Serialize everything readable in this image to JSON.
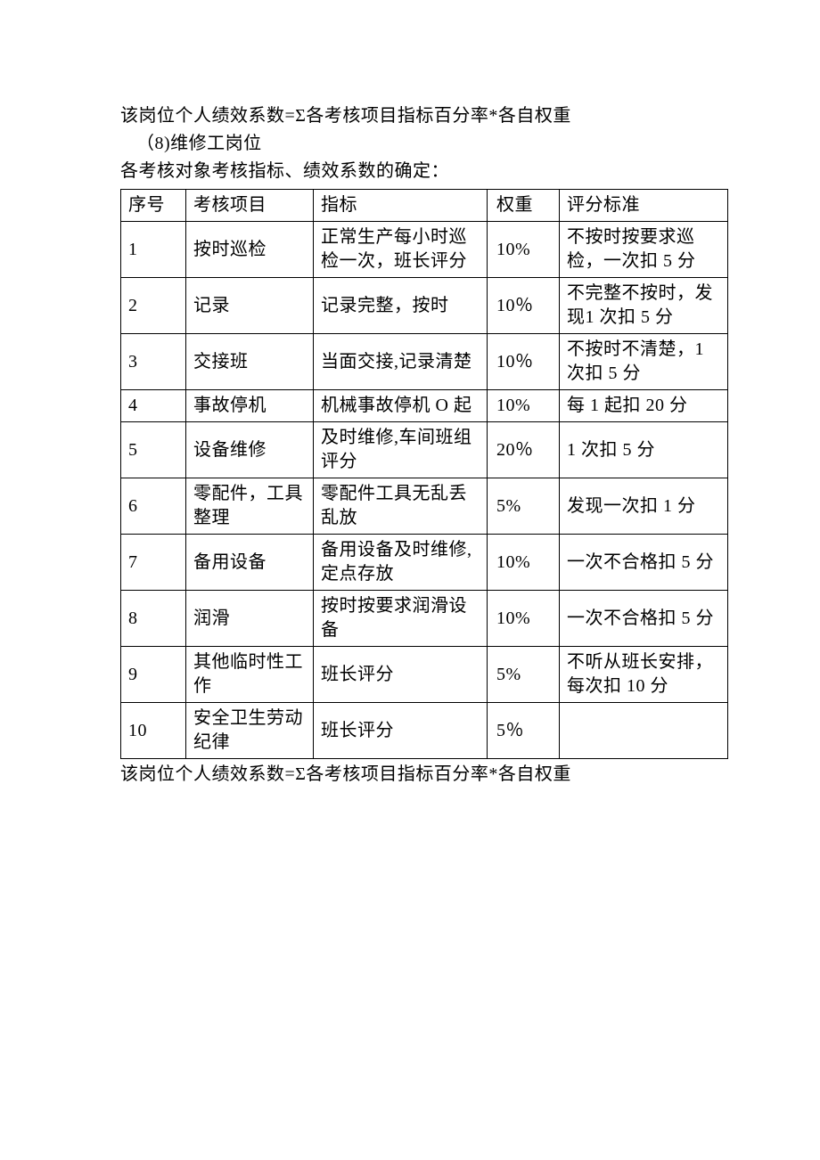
{
  "intro": {
    "formula_top": "该岗位个人绩效系数=Σ各考核项目指标百分率*各自权重",
    "section_no": "（8)维修工岗位",
    "subhead": "各考核对象考核指标、绩效系数的确定：",
    "formula_bottom": "该岗位个人绩效系数=Σ各考核项目指标百分率*各自权重"
  },
  "table": {
    "headers": [
      "序号",
      "考核项目",
      "指标",
      "权重",
      "评分标准"
    ],
    "rows": [
      [
        "1",
        "按时巡检",
        "正常生产每小时巡检一次，班长评分",
        "10%",
        "不按时按要求巡检，一次扣 5 分"
      ],
      [
        "2",
        "记录",
        "记录完整，按时",
        "10％",
        "不完整不按时，发现1 次扣 5 分"
      ],
      [
        "3",
        "交接班",
        "当面交接,记录清楚",
        "10％",
        "不按时不清楚，1 次扣 5 分"
      ],
      [
        "4",
        "事故停机",
        "机械事故停机 O 起",
        "10%",
        "每 1 起扣 20 分"
      ],
      [
        "5",
        "设备维修",
        "及时维修,车间班组评分",
        "20％",
        "1 次扣 5 分"
      ],
      [
        "6",
        "零配件，工具整理",
        "零配件工具无乱丢乱放",
        "5%",
        "发现一次扣 1 分"
      ],
      [
        "7",
        "备用设备",
        "备用设备及时维修,定点存放",
        "10%",
        "一次不合格扣 5 分"
      ],
      [
        "8",
        "润滑",
        "按时按要求润滑设备",
        "10%",
        "一次不合格扣 5 分"
      ],
      [
        "9",
        "其他临时性工作",
        "班长评分",
        "5%",
        "不听从班长安排，每次扣 10 分"
      ],
      [
        "10",
        "安全卫生劳动纪律",
        "班长评分",
        "5％",
        ""
      ]
    ]
  }
}
